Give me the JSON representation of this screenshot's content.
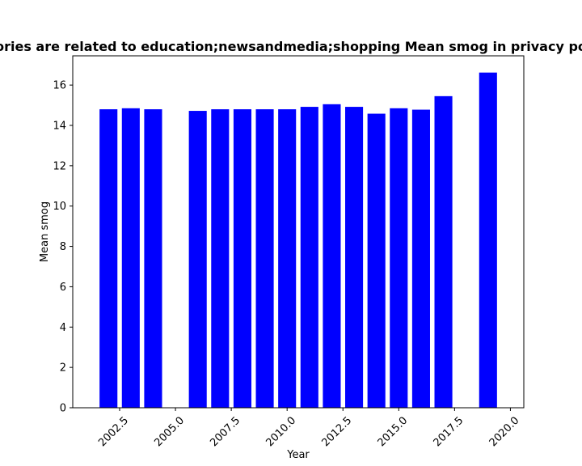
{
  "chart_data": {
    "type": "bar",
    "title": "ories are related to education;newsandmedia;shopping Mean smog in privacy po",
    "xlabel": "Year",
    "ylabel": "Mean smog",
    "x": [
      2002,
      2003,
      2004,
      2006,
      2007,
      2008,
      2009,
      2010,
      2011,
      2012,
      2013,
      2014,
      2015,
      2016,
      2017,
      2019
    ],
    "values": [
      14.8,
      14.85,
      14.8,
      14.72,
      14.8,
      14.8,
      14.8,
      14.8,
      14.92,
      15.05,
      14.92,
      14.58,
      14.85,
      14.78,
      15.45,
      16.62
    ],
    "xlim": [
      2000.4,
      2020.6
    ],
    "ylim": [
      0,
      17.45
    ],
    "xticks": [
      2002.5,
      2005.0,
      2007.5,
      2010.0,
      2012.5,
      2015.0,
      2017.5,
      2020.0
    ],
    "xtick_labels": [
      "2002.5",
      "2005.0",
      "2007.5",
      "2010.0",
      "2012.5",
      "2015.0",
      "2017.5",
      "2020.0"
    ],
    "yticks": [
      0,
      2,
      4,
      6,
      8,
      10,
      12,
      14,
      16
    ],
    "ytick_labels": [
      "0",
      "2",
      "4",
      "6",
      "8",
      "10",
      "12",
      "14",
      "16"
    ],
    "bar_width": 0.8,
    "bar_color": "#0000ff",
    "grid": false
  }
}
